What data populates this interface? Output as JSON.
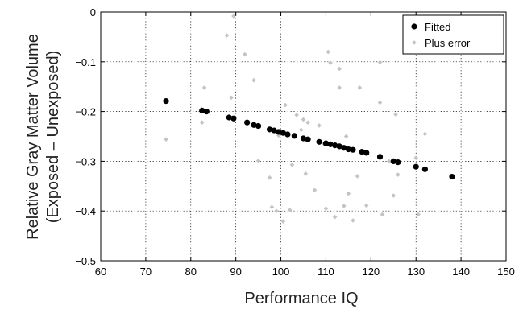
{
  "chart_data": {
    "type": "scatter",
    "xlabel": "Performance IQ",
    "ylabel_line1": "Relative Gray Matter Volume",
    "ylabel_line2": "(Exposed – Unexposed)",
    "xlim": [
      60,
      150
    ],
    "ylim": [
      -0.5,
      0
    ],
    "xticks": [
      60,
      70,
      80,
      90,
      100,
      110,
      120,
      130,
      140,
      150
    ],
    "yticks": [
      0,
      -0.1,
      -0.2,
      -0.3,
      -0.4,
      -0.5
    ],
    "xtick_labels": [
      "60",
      "70",
      "80",
      "90",
      "100",
      "110",
      "120",
      "130",
      "140",
      "150"
    ],
    "ytick_labels": [
      "0",
      "−0.1",
      "−0.2",
      "−0.3",
      "−0.4",
      "−0.5"
    ],
    "grid": true,
    "legend_position": "top-right",
    "series": [
      {
        "name": "Fitted",
        "color": "#000000",
        "marker": "filled-circle",
        "points": [
          [
            74.5,
            -0.179
          ],
          [
            82.5,
            -0.198
          ],
          [
            83.5,
            -0.2
          ],
          [
            88.5,
            -0.212
          ],
          [
            89.5,
            -0.214
          ],
          [
            92.5,
            -0.222
          ],
          [
            94.0,
            -0.227
          ],
          [
            95.0,
            -0.229
          ],
          [
            97.5,
            -0.236
          ],
          [
            98.5,
            -0.238
          ],
          [
            99.5,
            -0.241
          ],
          [
            100.5,
            -0.243
          ],
          [
            101.5,
            -0.246
          ],
          [
            103.0,
            -0.249
          ],
          [
            105.0,
            -0.254
          ],
          [
            106.0,
            -0.256
          ],
          [
            108.5,
            -0.261
          ],
          [
            110.0,
            -0.264
          ],
          [
            111.0,
            -0.266
          ],
          [
            112.0,
            -0.268
          ],
          [
            113.0,
            -0.27
          ],
          [
            114.0,
            -0.273
          ],
          [
            115.0,
            -0.276
          ],
          [
            116.0,
            -0.277
          ],
          [
            118.0,
            -0.281
          ],
          [
            119.0,
            -0.283
          ],
          [
            122.0,
            -0.291
          ],
          [
            125.0,
            -0.3
          ],
          [
            126.0,
            -0.302
          ],
          [
            130.0,
            -0.311
          ],
          [
            132.0,
            -0.316
          ],
          [
            138.0,
            -0.331
          ]
        ]
      },
      {
        "name": "Plus error",
        "color": "#c4c4c4",
        "marker": "small-diamond",
        "points": [
          [
            74.5,
            -0.256
          ],
          [
            82.5,
            -0.222
          ],
          [
            83.0,
            -0.152
          ],
          [
            88.0,
            -0.047
          ],
          [
            89.0,
            -0.172
          ],
          [
            89.5,
            -0.008
          ],
          [
            92.0,
            -0.085
          ],
          [
            94.0,
            -0.137
          ],
          [
            95.0,
            -0.299
          ],
          [
            97.5,
            -0.333
          ],
          [
            98.0,
            -0.392
          ],
          [
            99.0,
            -0.4
          ],
          [
            99.5,
            -0.248
          ],
          [
            100.5,
            -0.421
          ],
          [
            101.0,
            -0.187
          ],
          [
            102.0,
            -0.398
          ],
          [
            102.5,
            -0.307
          ],
          [
            103.5,
            -0.207
          ],
          [
            104.5,
            -0.237
          ],
          [
            105.0,
            -0.216
          ],
          [
            105.5,
            -0.325
          ],
          [
            106.0,
            -0.222
          ],
          [
            107.5,
            -0.358
          ],
          [
            108.5,
            -0.228
          ],
          [
            109.5,
            -0.265
          ],
          [
            110.0,
            -0.395
          ],
          [
            110.5,
            -0.08
          ],
          [
            111.0,
            -0.102
          ],
          [
            112.0,
            -0.412
          ],
          [
            113.0,
            -0.114
          ],
          [
            113.0,
            -0.152
          ],
          [
            114.0,
            -0.39
          ],
          [
            114.5,
            -0.25
          ],
          [
            115.0,
            -0.365
          ],
          [
            116.0,
            -0.419
          ],
          [
            117.0,
            -0.33
          ],
          [
            117.5,
            -0.152
          ],
          [
            119.0,
            -0.389
          ],
          [
            122.0,
            -0.101
          ],
          [
            122.0,
            -0.182
          ],
          [
            122.5,
            -0.407
          ],
          [
            124.0,
            -0.3
          ],
          [
            125.0,
            -0.369
          ],
          [
            125.5,
            -0.206
          ],
          [
            126.0,
            -0.327
          ],
          [
            130.0,
            -0.293
          ],
          [
            130.5,
            -0.407
          ],
          [
            132.0,
            -0.245
          ]
        ]
      }
    ]
  }
}
